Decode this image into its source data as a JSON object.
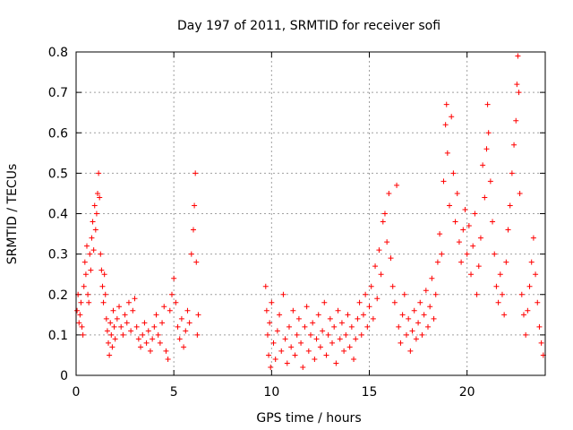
{
  "chart_data": {
    "type": "scatter",
    "title": "Day 197 of 2011, SRMTID for receiver sofi",
    "xlabel": "GPS time / hours",
    "ylabel": "SRMTID / TECUs",
    "xlim": [
      0,
      24
    ],
    "ylim": [
      0,
      0.8
    ],
    "xticks": [
      0,
      5,
      10,
      15,
      20
    ],
    "yticks": [
      0,
      0.1,
      0.2,
      0.3,
      0.4,
      0.5,
      0.6,
      0.7,
      0.8
    ],
    "grid": true,
    "marker": "+",
    "color": "#ff0000",
    "series": [
      {
        "name": "SRMTID",
        "points": [
          [
            0.05,
            0.16
          ],
          [
            0.1,
            0.2
          ],
          [
            0.15,
            0.13
          ],
          [
            0.2,
            0.15
          ],
          [
            0.25,
            0.18
          ],
          [
            0.3,
            0.12
          ],
          [
            0.35,
            0.1
          ],
          [
            0.4,
            0.22
          ],
          [
            0.45,
            0.28
          ],
          [
            0.5,
            0.25
          ],
          [
            0.55,
            0.32
          ],
          [
            0.6,
            0.2
          ],
          [
            0.65,
            0.18
          ],
          [
            0.7,
            0.3
          ],
          [
            0.75,
            0.26
          ],
          [
            0.8,
            0.34
          ],
          [
            0.85,
            0.38
          ],
          [
            0.9,
            0.31
          ],
          [
            0.95,
            0.42
          ],
          [
            1.0,
            0.36
          ],
          [
            1.05,
            0.4
          ],
          [
            1.1,
            0.45
          ],
          [
            1.15,
            0.5
          ],
          [
            1.2,
            0.44
          ],
          [
            1.25,
            0.3
          ],
          [
            1.3,
            0.26
          ],
          [
            1.35,
            0.22
          ],
          [
            1.4,
            0.18
          ],
          [
            1.45,
            0.25
          ],
          [
            1.5,
            0.2
          ],
          [
            1.55,
            0.14
          ],
          [
            1.6,
            0.11
          ],
          [
            1.65,
            0.08
          ],
          [
            1.7,
            0.05
          ],
          [
            1.75,
            0.13
          ],
          [
            1.8,
            0.1
          ],
          [
            1.85,
            0.07
          ],
          [
            1.9,
            0.16
          ],
          [
            1.95,
            0.12
          ],
          [
            2.0,
            0.09
          ],
          [
            2.1,
            0.14
          ],
          [
            2.2,
            0.17
          ],
          [
            2.3,
            0.12
          ],
          [
            2.4,
            0.1
          ],
          [
            2.5,
            0.15
          ],
          [
            2.6,
            0.13
          ],
          [
            2.7,
            0.18
          ],
          [
            2.8,
            0.11
          ],
          [
            2.9,
            0.16
          ],
          [
            3.0,
            0.19
          ],
          [
            3.1,
            0.12
          ],
          [
            3.2,
            0.09
          ],
          [
            3.3,
            0.07
          ],
          [
            3.4,
            0.1
          ],
          [
            3.5,
            0.13
          ],
          [
            3.6,
            0.08
          ],
          [
            3.7,
            0.11
          ],
          [
            3.8,
            0.06
          ],
          [
            3.9,
            0.09
          ],
          [
            4.0,
            0.12
          ],
          [
            4.1,
            0.15
          ],
          [
            4.2,
            0.1
          ],
          [
            4.3,
            0.08
          ],
          [
            4.4,
            0.13
          ],
          [
            4.5,
            0.17
          ],
          [
            4.6,
            0.06
          ],
          [
            4.7,
            0.04
          ],
          [
            4.8,
            0.16
          ],
          [
            4.9,
            0.2
          ],
          [
            5.0,
            0.24
          ],
          [
            5.1,
            0.18
          ],
          [
            5.2,
            0.12
          ],
          [
            5.3,
            0.09
          ],
          [
            5.4,
            0.14
          ],
          [
            5.5,
            0.07
          ],
          [
            5.6,
            0.11
          ],
          [
            5.7,
            0.16
          ],
          [
            5.8,
            0.13
          ],
          [
            5.9,
            0.3
          ],
          [
            6.0,
            0.36
          ],
          [
            6.05,
            0.42
          ],
          [
            6.1,
            0.5
          ],
          [
            6.15,
            0.28
          ],
          [
            6.2,
            0.1
          ],
          [
            6.25,
            0.15
          ],
          [
            9.7,
            0.22
          ],
          [
            9.75,
            0.16
          ],
          [
            9.8,
            0.1
          ],
          [
            9.85,
            0.05
          ],
          [
            9.9,
            0.13
          ],
          [
            9.95,
            0.02
          ],
          [
            10.0,
            0.18
          ],
          [
            10.1,
            0.08
          ],
          [
            10.2,
            0.04
          ],
          [
            10.3,
            0.11
          ],
          [
            10.4,
            0.15
          ],
          [
            10.5,
            0.06
          ],
          [
            10.6,
            0.2
          ],
          [
            10.7,
            0.09
          ],
          [
            10.8,
            0.03
          ],
          [
            10.9,
            0.12
          ],
          [
            11.0,
            0.07
          ],
          [
            11.1,
            0.16
          ],
          [
            11.2,
            0.05
          ],
          [
            11.3,
            0.1
          ],
          [
            11.4,
            0.14
          ],
          [
            11.5,
            0.08
          ],
          [
            11.6,
            0.02
          ],
          [
            11.7,
            0.12
          ],
          [
            11.8,
            0.17
          ],
          [
            11.9,
            0.06
          ],
          [
            12.0,
            0.1
          ],
          [
            12.1,
            0.13
          ],
          [
            12.2,
            0.04
          ],
          [
            12.3,
            0.09
          ],
          [
            12.4,
            0.15
          ],
          [
            12.5,
            0.07
          ],
          [
            12.6,
            0.11
          ],
          [
            12.7,
            0.18
          ],
          [
            12.8,
            0.05
          ],
          [
            12.9,
            0.1
          ],
          [
            13.0,
            0.14
          ],
          [
            13.1,
            0.08
          ],
          [
            13.2,
            0.12
          ],
          [
            13.3,
            0.03
          ],
          [
            13.4,
            0.16
          ],
          [
            13.5,
            0.09
          ],
          [
            13.6,
            0.13
          ],
          [
            13.7,
            0.06
          ],
          [
            13.8,
            0.1
          ],
          [
            13.9,
            0.15
          ],
          [
            14.0,
            0.07
          ],
          [
            14.1,
            0.12
          ],
          [
            14.2,
            0.04
          ],
          [
            14.3,
            0.09
          ],
          [
            14.4,
            0.14
          ],
          [
            14.5,
            0.18
          ],
          [
            14.6,
            0.1
          ],
          [
            14.7,
            0.15
          ],
          [
            14.8,
            0.2
          ],
          [
            14.9,
            0.12
          ],
          [
            15.0,
            0.17
          ],
          [
            15.1,
            0.22
          ],
          [
            15.2,
            0.14
          ],
          [
            15.3,
            0.27
          ],
          [
            15.4,
            0.19
          ],
          [
            15.5,
            0.31
          ],
          [
            15.6,
            0.25
          ],
          [
            15.7,
            0.38
          ],
          [
            15.8,
            0.4
          ],
          [
            15.9,
            0.33
          ],
          [
            16.0,
            0.45
          ],
          [
            16.1,
            0.29
          ],
          [
            16.2,
            0.22
          ],
          [
            16.3,
            0.18
          ],
          [
            16.4,
            0.47
          ],
          [
            16.5,
            0.12
          ],
          [
            16.6,
            0.08
          ],
          [
            16.7,
            0.15
          ],
          [
            16.8,
            0.2
          ],
          [
            16.9,
            0.1
          ],
          [
            17.0,
            0.14
          ],
          [
            17.1,
            0.06
          ],
          [
            17.2,
            0.11
          ],
          [
            17.3,
            0.16
          ],
          [
            17.4,
            0.09
          ],
          [
            17.5,
            0.13
          ],
          [
            17.6,
            0.18
          ],
          [
            17.7,
            0.1
          ],
          [
            17.8,
            0.15
          ],
          [
            17.9,
            0.21
          ],
          [
            18.0,
            0.12
          ],
          [
            18.1,
            0.17
          ],
          [
            18.2,
            0.24
          ],
          [
            18.3,
            0.14
          ],
          [
            18.4,
            0.2
          ],
          [
            18.5,
            0.28
          ],
          [
            18.6,
            0.35
          ],
          [
            18.7,
            0.3
          ],
          [
            18.8,
            0.48
          ],
          [
            18.9,
            0.62
          ],
          [
            18.95,
            0.67
          ],
          [
            19.0,
            0.55
          ],
          [
            19.1,
            0.42
          ],
          [
            19.2,
            0.64
          ],
          [
            19.3,
            0.5
          ],
          [
            19.4,
            0.38
          ],
          [
            19.5,
            0.45
          ],
          [
            19.6,
            0.33
          ],
          [
            19.7,
            0.28
          ],
          [
            19.8,
            0.36
          ],
          [
            19.9,
            0.41
          ],
          [
            20.0,
            0.3
          ],
          [
            20.1,
            0.37
          ],
          [
            20.2,
            0.25
          ],
          [
            20.3,
            0.32
          ],
          [
            20.4,
            0.4
          ],
          [
            20.5,
            0.2
          ],
          [
            20.6,
            0.27
          ],
          [
            20.7,
            0.34
          ],
          [
            20.8,
            0.52
          ],
          [
            20.9,
            0.44
          ],
          [
            21.0,
            0.56
          ],
          [
            21.05,
            0.67
          ],
          [
            21.1,
            0.6
          ],
          [
            21.2,
            0.48
          ],
          [
            21.3,
            0.38
          ],
          [
            21.4,
            0.3
          ],
          [
            21.5,
            0.22
          ],
          [
            21.6,
            0.18
          ],
          [
            21.7,
            0.25
          ],
          [
            21.8,
            0.2
          ],
          [
            21.9,
            0.15
          ],
          [
            22.0,
            0.28
          ],
          [
            22.1,
            0.36
          ],
          [
            22.2,
            0.42
          ],
          [
            22.3,
            0.5
          ],
          [
            22.4,
            0.57
          ],
          [
            22.5,
            0.63
          ],
          [
            22.55,
            0.72
          ],
          [
            22.6,
            0.79
          ],
          [
            22.65,
            0.7
          ],
          [
            22.7,
            0.45
          ],
          [
            22.8,
            0.2
          ],
          [
            22.9,
            0.15
          ],
          [
            23.0,
            0.1
          ],
          [
            23.1,
            0.16
          ],
          [
            23.2,
            0.22
          ],
          [
            23.3,
            0.28
          ],
          [
            23.4,
            0.34
          ],
          [
            23.5,
            0.25
          ],
          [
            23.6,
            0.18
          ],
          [
            23.7,
            0.12
          ],
          [
            23.8,
            0.08
          ],
          [
            23.9,
            0.05
          ]
        ]
      }
    ]
  }
}
